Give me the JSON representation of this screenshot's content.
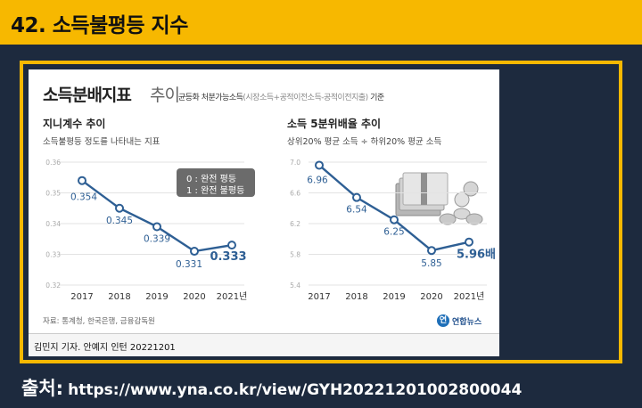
{
  "slide": {
    "title": "42. 소득불평등 지수",
    "source_label": "출처:",
    "source_url": "https://www.yna.co.kr/view/GYH20221201002800044"
  },
  "card": {
    "title": "소득분배지표",
    "title_light": "추이",
    "subtitle_main": "균등화 처분가능소득",
    "subtitle_paren": "(시장소득+공적이전소득-공적이전지출)",
    "subtitle_end": "기준",
    "source_note": "자료: 통계청, 한국은행, 금융감독원",
    "logo_mark": "연",
    "logo_text": "연합뉴스",
    "credit": "김민지 기자. 안예지 인턴  20221201"
  },
  "legend": {
    "line1": "0 : 완전 평등",
    "line2": "1 : 완전 불평등"
  },
  "colors": {
    "accent_yellow": "#f7b800",
    "background_navy": "#1d2a3e",
    "series_blue": "#2e5f94"
  },
  "chart_data": [
    {
      "type": "line",
      "title": "지니계수 추이",
      "subtitle": "소득불평등 정도를 나타내는 지표",
      "categories": [
        "2017",
        "2018",
        "2019",
        "2020",
        "2021년"
      ],
      "series": [
        {
          "values": [
            0.354,
            0.345,
            0.339,
            0.331,
            0.333
          ]
        }
      ],
      "data_labels": [
        "0.354",
        "0.345",
        "0.339",
        "0.331",
        "0.333"
      ],
      "y_ticks": [
        "0.36",
        "0.35",
        "0.34",
        "0.33",
        "0.32"
      ],
      "ylim": [
        0.32,
        0.36
      ],
      "grid": true
    },
    {
      "type": "line",
      "title": "소득 5분위배율 추이",
      "subtitle": "상위20% 평균 소득 ÷ 하위20% 평균 소득",
      "categories": [
        "2017",
        "2018",
        "2019",
        "2020",
        "2021년"
      ],
      "series": [
        {
          "values": [
            6.96,
            6.54,
            6.25,
            5.85,
            5.96
          ]
        }
      ],
      "data_labels": [
        "6.96",
        "6.54",
        "6.25",
        "5.85",
        "5.96배"
      ],
      "y_ticks": [
        "7.0",
        "6.6",
        "6.2",
        "5.8",
        "5.4"
      ],
      "ylim": [
        5.4,
        7.0
      ],
      "grid": true
    }
  ]
}
